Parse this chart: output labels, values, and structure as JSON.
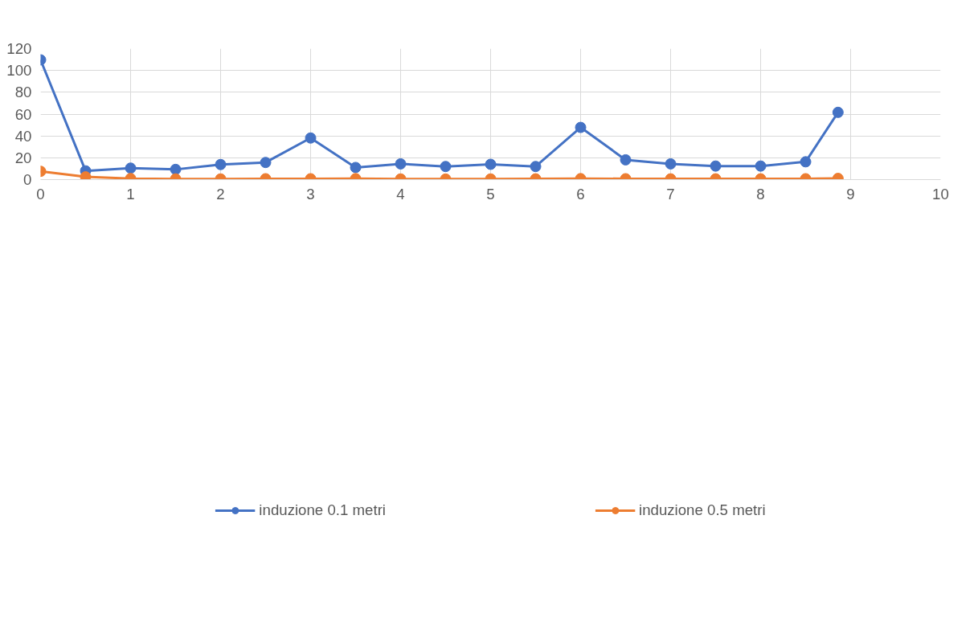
{
  "chart_data": {
    "type": "line",
    "x": [
      0,
      0.5,
      1,
      1.5,
      2,
      2.5,
      3,
      3.5,
      4,
      4.5,
      5,
      5.5,
      6,
      6.5,
      7,
      7.5,
      8,
      8.5,
      8.86
    ],
    "series": [
      {
        "name": "induzione 0.1 metri",
        "color": "#4472c4",
        "values": [
          109.7,
          8.0,
          10.5,
          9.3,
          13.8,
          15.7,
          38.1,
          11.1,
          14.4,
          12.0,
          14.0,
          12.0,
          47.8,
          18.1,
          14.4,
          12.4,
          12.4,
          16.3,
          61.6
        ]
      },
      {
        "name": "induzione 0.5 metri",
        "color": "#ed7d31",
        "values": [
          7.6,
          2.5,
          1.0,
          0.6,
          0.6,
          0.8,
          0.8,
          0.9,
          0.6,
          0.5,
          0.6,
          0.7,
          0.9,
          0.8,
          0.7,
          0.7,
          0.7,
          0.8,
          1.1
        ]
      }
    ],
    "xlim": [
      0,
      10
    ],
    "xticks": [
      0,
      1,
      2,
      3,
      4,
      5,
      6,
      7,
      8,
      9,
      10
    ],
    "ylim": [
      0,
      120
    ],
    "yticks": [
      0,
      20,
      40,
      60,
      80,
      100,
      120
    ],
    "grid": true,
    "legend": "bottom",
    "marker": "circle",
    "line_style": "solid"
  }
}
